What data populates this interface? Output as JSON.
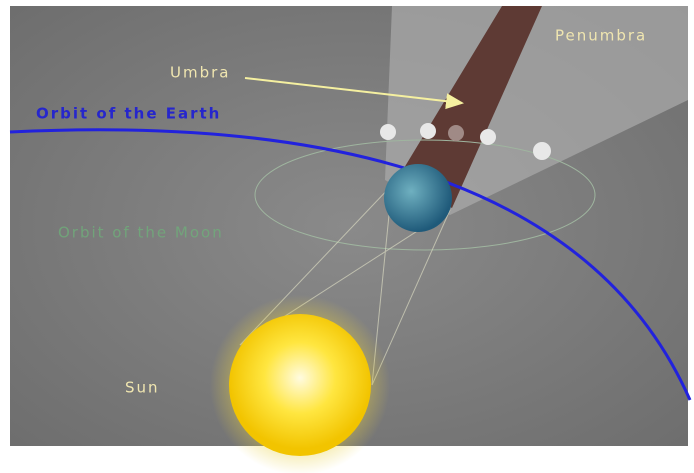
{
  "labels": {
    "penumbra": "Penumbra",
    "umbra": "Umbra",
    "earth_orbit": "Orbit of the Earth",
    "moon_orbit": "Orbit of the Moon",
    "sun": "Sun"
  }
}
